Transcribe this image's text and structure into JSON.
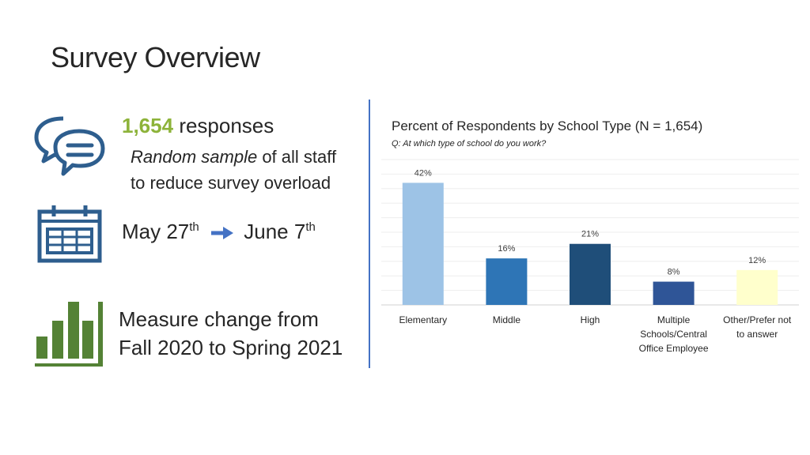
{
  "slide": {
    "title": "Survey Overview"
  },
  "responses": {
    "count": "1,654",
    "label": "responses",
    "desc_emph": "Random sample",
    "desc_rest": "of all staff",
    "desc_line2": "to reduce survey overload"
  },
  "dates": {
    "start": "May 27",
    "start_sup": "th",
    "end": "June 7",
    "end_sup": "th"
  },
  "measure": {
    "line1": "Measure change from",
    "line2": "Fall 2020 to Spring 2021"
  },
  "icons": {
    "chat": "chat-bubbles-icon",
    "calendar": "calendar-icon",
    "bars": "bar-chart-icon",
    "arrow": "arrow-right-icon"
  },
  "colors": {
    "accent": "#8DB33A",
    "divider": "#4472C4",
    "icon": "#2E5E8E",
    "bars_icon": "#548235"
  },
  "chart_data": {
    "type": "bar",
    "title": "Percent of Respondents by School Type (N = 1,654)",
    "subtitle": "Q: At which type of school do you work?",
    "categories": [
      [
        "Elementary"
      ],
      [
        "Middle"
      ],
      [
        "High"
      ],
      [
        "Multiple",
        "Schools/Central",
        "Office Employee"
      ],
      [
        "Other/Prefer not",
        "to answer"
      ]
    ],
    "values": [
      42,
      16,
      21,
      8,
      12
    ],
    "data_labels": [
      "42%",
      "16%",
      "21%",
      "8%",
      "12%"
    ],
    "bar_colors": [
      "#9DC3E6",
      "#2E75B6",
      "#1F4E79",
      "#2F5597",
      "#FFFFCC"
    ],
    "ylim": [
      0,
      50
    ],
    "grid": true
  }
}
